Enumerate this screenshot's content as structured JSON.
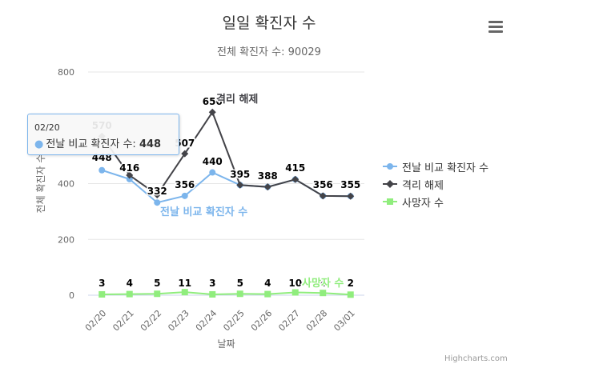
{
  "chart": {
    "title": "일일 확진자 수",
    "subtitle": "전체 확진자 수: 90029",
    "credits": "Highcharts.com",
    "menu_icon": "hamburger-menu-icon"
  },
  "chart_data": {
    "type": "line",
    "title": "일일 확진자 수",
    "subtitle": "전체 확진자 수: 90029",
    "xlabel": "날짜",
    "ylabel": "전체 확진자 수",
    "categories": [
      "02/20",
      "02/21",
      "02/22",
      "02/23",
      "02/24",
      "02/25",
      "02/26",
      "02/27",
      "02/28",
      "03/01"
    ],
    "ylim": [
      0,
      800
    ],
    "yticks": [
      0,
      200,
      400,
      800
    ],
    "grid": true,
    "legend_position": "right",
    "series": [
      {
        "name": "전날 비교 확진자 수",
        "values": [
          448,
          416,
          332,
          356,
          440,
          395,
          388,
          415,
          356,
          355
        ],
        "color": "#7cb5ec",
        "marker": "circle"
      },
      {
        "name": "격리 해제",
        "values": [
          570,
          430,
          360,
          507,
          656,
          395,
          388,
          415,
          356,
          355
        ],
        "color": "#434348",
        "marker": "diamond"
      },
      {
        "name": "사망자 수",
        "values": [
          3,
          4,
          5,
          11,
          3,
          5,
          4,
          10,
          8,
          2
        ],
        "color": "#90ed7d",
        "marker": "square"
      }
    ],
    "data_labels": {
      "top_values": [
        448,
        416,
        332,
        356,
        440,
        395,
        388,
        415,
        356,
        355
      ],
      "quarantine_labels": [
        570,
        507,
        656
      ],
      "death_values": [
        3,
        4,
        5,
        11,
        3,
        5,
        4,
        10,
        8,
        2
      ]
    },
    "series_inline_labels": [
      "전날 비교 확진자 수",
      "격리 해제",
      "사망자 수"
    ]
  },
  "tooltip": {
    "date": "02/20",
    "series_name": "전날 비교 확진자 수",
    "separator": ": ",
    "value": "448"
  }
}
